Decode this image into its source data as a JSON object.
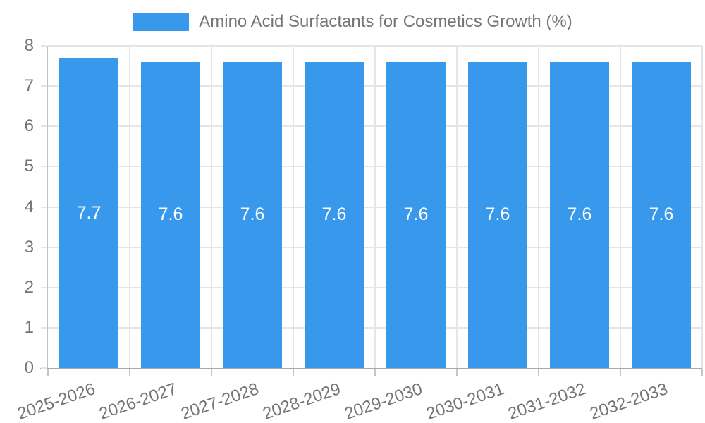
{
  "chart_data": {
    "type": "bar",
    "title": "",
    "legend_position": "top",
    "series": [
      {
        "name": "Amino Acid Surfactants for Cosmetics Growth (%)",
        "values": [
          7.7,
          7.6,
          7.6,
          7.6,
          7.6,
          7.6,
          7.6,
          7.6
        ]
      }
    ],
    "value_labels": [
      "7.7",
      "7.6",
      "7.6",
      "7.6",
      "7.6",
      "7.6",
      "7.6",
      "7.6"
    ],
    "categories": [
      "2025-2026",
      "2026-2027",
      "2027-2028",
      "2028-2029",
      "2029-2030",
      "2030-2031",
      "2031-2032",
      "2032-2033"
    ],
    "xlabel": "",
    "ylabel": "",
    "ylim": [
      0,
      8
    ],
    "yticks": [
      0,
      1,
      2,
      3,
      4,
      5,
      6,
      7,
      8
    ],
    "grid": true
  },
  "style": {
    "bar_color": "#3899ec",
    "bar_label_color": "#ffffff",
    "text_color": "#757575",
    "grid_color": "#e5e5e5",
    "xtick_color": "#c6c6c6",
    "vaxis_color": "#c2c2c2",
    "haxis_color": "#a8a8a8"
  }
}
